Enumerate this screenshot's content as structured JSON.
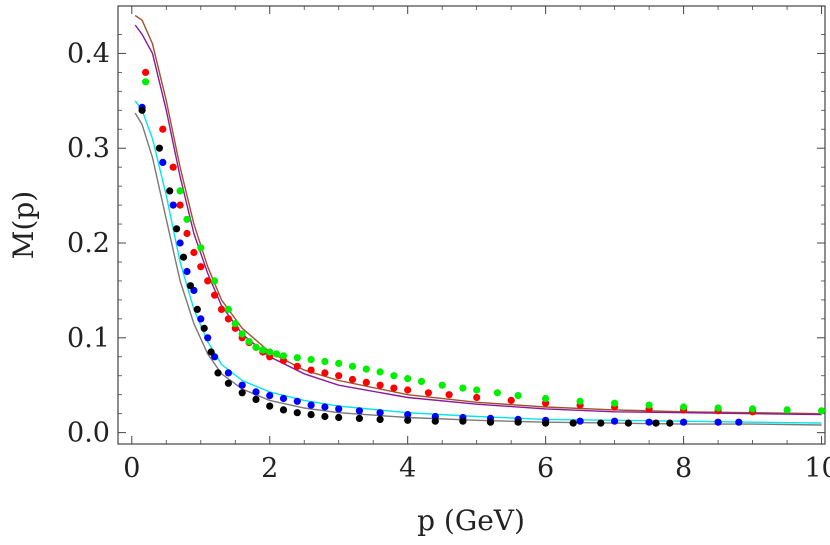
{
  "chart_data": {
    "type": "scatter",
    "xlabel": "p (GeV)",
    "ylabel": "M(p)",
    "xlim": [
      -0.2,
      10.05
    ],
    "ylim": [
      -0.012,
      0.45
    ],
    "x_ticks": [
      "0",
      "2",
      "4",
      "6",
      "8",
      "10"
    ],
    "y_ticks": [
      "0.0",
      "0.1",
      "0.2",
      "0.3",
      "0.4"
    ],
    "x_tick_values": [
      0,
      2,
      4,
      6,
      8,
      10
    ],
    "y_tick_values": [
      0.0,
      0.1,
      0.2,
      0.3,
      0.4
    ],
    "grid": false,
    "series": [
      {
        "kind": "points",
        "color": "#ff0000",
        "x": [
          0.2,
          0.45,
          0.6,
          0.7,
          0.8,
          0.9,
          1.0,
          1.1,
          1.2,
          1.3,
          1.4,
          1.5,
          1.6,
          1.7,
          1.8,
          1.9,
          2.0,
          2.2,
          2.4,
          2.6,
          2.8,
          3.0,
          3.2,
          3.4,
          3.6,
          3.8,
          4.0,
          4.3,
          4.6,
          5.0,
          5.5,
          6.0,
          6.5,
          7.0,
          7.5,
          8.0,
          8.5,
          9.0
        ],
        "y": [
          0.38,
          0.32,
          0.28,
          0.24,
          0.21,
          0.19,
          0.175,
          0.16,
          0.145,
          0.13,
          0.12,
          0.11,
          0.1,
          0.095,
          0.09,
          0.085,
          0.08,
          0.076,
          0.07,
          0.066,
          0.063,
          0.06,
          0.056,
          0.053,
          0.05,
          0.047,
          0.045,
          0.042,
          0.04,
          0.037,
          0.034,
          0.031,
          0.029,
          0.027,
          0.025,
          0.024,
          0.023,
          0.022
        ]
      },
      {
        "kind": "points",
        "color": "#00ee00",
        "x": [
          0.2,
          0.7,
          0.8,
          1.0,
          1.2,
          1.4,
          1.5,
          1.6,
          1.7,
          1.8,
          1.9,
          2.0,
          2.1,
          2.2,
          2.4,
          2.6,
          2.8,
          3.0,
          3.2,
          3.4,
          3.6,
          3.8,
          4.0,
          4.2,
          4.5,
          4.8,
          5.0,
          5.3,
          5.6,
          6.0,
          6.5,
          7.0,
          7.5,
          8.0,
          8.5,
          9.0,
          9.5,
          10.0
        ],
        "y": [
          0.37,
          0.255,
          0.225,
          0.195,
          0.16,
          0.13,
          0.115,
          0.104,
          0.096,
          0.09,
          0.087,
          0.085,
          0.083,
          0.081,
          0.079,
          0.077,
          0.075,
          0.073,
          0.07,
          0.067,
          0.064,
          0.06,
          0.057,
          0.054,
          0.05,
          0.047,
          0.045,
          0.042,
          0.039,
          0.036,
          0.033,
          0.031,
          0.029,
          0.027,
          0.026,
          0.025,
          0.024,
          0.023
        ]
      },
      {
        "kind": "points",
        "color": "#0000ff",
        "x": [
          0.15,
          0.45,
          0.6,
          0.7,
          0.8,
          0.9,
          1.0,
          1.1,
          1.2,
          1.4,
          1.6,
          1.8,
          2.0,
          2.2,
          2.4,
          2.6,
          2.8,
          3.0,
          3.3,
          3.6,
          4.0,
          4.4,
          4.8,
          5.2,
          5.6,
          6.0,
          6.5,
          7.0,
          7.5,
          8.0,
          8.5,
          8.8
        ],
        "y": [
          0.343,
          0.285,
          0.24,
          0.2,
          0.17,
          0.15,
          0.12,
          0.1,
          0.08,
          0.063,
          0.05,
          0.043,
          0.039,
          0.036,
          0.033,
          0.029,
          0.027,
          0.025,
          0.023,
          0.021,
          0.019,
          0.017,
          0.016,
          0.015,
          0.014,
          0.013,
          0.012,
          0.012,
          0.011,
          0.011,
          0.011,
          0.011
        ]
      },
      {
        "kind": "points",
        "color": "#000000",
        "x": [
          0.15,
          0.4,
          0.55,
          0.65,
          0.75,
          0.85,
          0.95,
          1.05,
          1.15,
          1.25,
          1.4,
          1.6,
          1.8,
          2.0,
          2.2,
          2.4,
          2.6,
          2.8,
          3.0,
          3.3,
          3.6,
          4.0,
          4.4,
          4.8,
          5.2,
          5.6,
          6.0,
          6.4,
          6.8,
          7.2,
          7.6,
          7.8
        ],
        "y": [
          0.34,
          0.3,
          0.255,
          0.215,
          0.185,
          0.155,
          0.13,
          0.11,
          0.085,
          0.063,
          0.052,
          0.042,
          0.035,
          0.028,
          0.024,
          0.021,
          0.019,
          0.017,
          0.016,
          0.015,
          0.014,
          0.013,
          0.012,
          0.012,
          0.011,
          0.011,
          0.01,
          0.01,
          0.01,
          0.01,
          0.01,
          0.01
        ]
      },
      {
        "kind": "line",
        "color": "#a0522d",
        "x": [
          0.05,
          0.15,
          0.3,
          0.5,
          0.7,
          0.9,
          1.1,
          1.3,
          1.6,
          2.0,
          2.5,
          3.0,
          4.0,
          5.0,
          6.0,
          7.0,
          8.0,
          9.0,
          10.0
        ],
        "y": [
          0.44,
          0.435,
          0.41,
          0.35,
          0.28,
          0.22,
          0.175,
          0.14,
          0.11,
          0.085,
          0.066,
          0.055,
          0.04,
          0.032,
          0.027,
          0.024,
          0.022,
          0.021,
          0.02
        ]
      },
      {
        "kind": "line",
        "color": "#8b1a9a",
        "x": [
          0.05,
          0.15,
          0.3,
          0.5,
          0.7,
          0.9,
          1.1,
          1.3,
          1.6,
          2.0,
          2.5,
          3.0,
          4.0,
          5.0,
          6.0,
          7.0,
          8.0,
          9.0,
          10.0
        ],
        "y": [
          0.43,
          0.42,
          0.4,
          0.34,
          0.27,
          0.21,
          0.168,
          0.134,
          0.104,
          0.08,
          0.062,
          0.05,
          0.037,
          0.03,
          0.025,
          0.022,
          0.021,
          0.02,
          0.019
        ]
      },
      {
        "kind": "line",
        "color": "#00e5ee",
        "x": [
          0.05,
          0.15,
          0.3,
          0.5,
          0.7,
          0.9,
          1.1,
          1.3,
          1.6,
          2.0,
          2.5,
          3.0,
          4.0,
          5.0,
          6.0,
          7.0,
          8.0,
          9.0,
          10.0
        ],
        "y": [
          0.35,
          0.34,
          0.31,
          0.25,
          0.18,
          0.13,
          0.096,
          0.072,
          0.055,
          0.043,
          0.034,
          0.028,
          0.021,
          0.017,
          0.014,
          0.013,
          0.012,
          0.011,
          0.01
        ]
      },
      {
        "kind": "line",
        "color": "#7a7a7a",
        "x": [
          0.05,
          0.15,
          0.3,
          0.5,
          0.7,
          0.9,
          1.1,
          1.3,
          1.6,
          2.0,
          2.5,
          3.0,
          4.0,
          5.0,
          6.0,
          7.0,
          8.0,
          9.0,
          10.0
        ],
        "y": [
          0.337,
          0.325,
          0.29,
          0.225,
          0.16,
          0.115,
          0.083,
          0.062,
          0.046,
          0.034,
          0.026,
          0.021,
          0.016,
          0.013,
          0.011,
          0.01,
          0.009,
          0.009,
          0.008
        ]
      }
    ]
  }
}
